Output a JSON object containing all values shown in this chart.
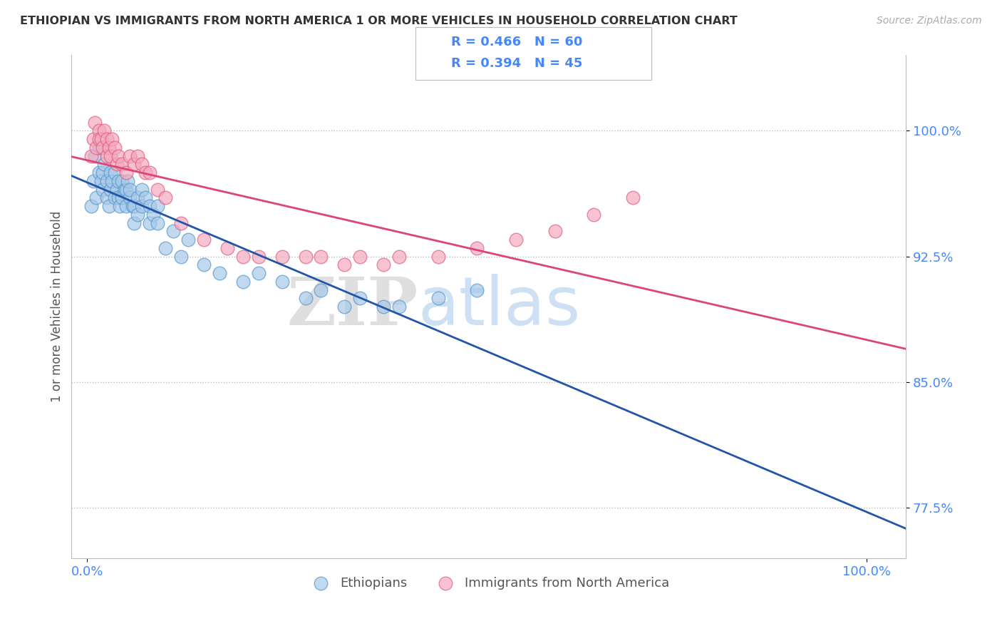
{
  "title": "ETHIOPIAN VS IMMIGRANTS FROM NORTH AMERICA 1 OR MORE VEHICLES IN HOUSEHOLD CORRELATION CHART",
  "source_text": "Source: ZipAtlas.com",
  "ylabel": "1 or more Vehicles in Household",
  "watermark_zip": "ZIP",
  "watermark_atlas": "atlas",
  "blue_color": "#a8c8e8",
  "pink_color": "#f4a8c0",
  "blue_edge_color": "#5599cc",
  "pink_edge_color": "#e06080",
  "blue_line_color": "#2255aa",
  "pink_line_color": "#dd4477",
  "yticks": [
    0.775,
    0.85,
    0.925,
    1.0
  ],
  "ytick_labels": [
    "77.5%",
    "85.0%",
    "92.5%",
    "100.0%"
  ],
  "xlim": [
    -0.02,
    1.05
  ],
  "ylim": [
    0.745,
    1.045
  ],
  "blue_R": 0.466,
  "blue_N": 60,
  "pink_R": 0.394,
  "pink_N": 45,
  "blue_scatter_x": [
    0.005,
    0.008,
    0.01,
    0.012,
    0.015,
    0.015,
    0.018,
    0.02,
    0.02,
    0.022,
    0.025,
    0.025,
    0.028,
    0.03,
    0.03,
    0.032,
    0.035,
    0.035,
    0.038,
    0.04,
    0.04,
    0.042,
    0.045,
    0.045,
    0.048,
    0.05,
    0.05,
    0.052,
    0.055,
    0.055,
    0.058,
    0.06,
    0.06,
    0.065,
    0.065,
    0.07,
    0.07,
    0.075,
    0.08,
    0.08,
    0.085,
    0.09,
    0.09,
    0.1,
    0.11,
    0.12,
    0.13,
    0.15,
    0.17,
    0.2,
    0.22,
    0.25,
    0.28,
    0.3,
    0.33,
    0.35,
    0.38,
    0.4,
    0.45,
    0.5
  ],
  "blue_scatter_y": [
    0.955,
    0.97,
    0.985,
    0.96,
    0.975,
    0.99,
    0.97,
    0.965,
    0.975,
    0.98,
    0.96,
    0.97,
    0.955,
    0.965,
    0.975,
    0.97,
    0.96,
    0.975,
    0.965,
    0.96,
    0.97,
    0.955,
    0.96,
    0.97,
    0.965,
    0.955,
    0.965,
    0.97,
    0.96,
    0.965,
    0.955,
    0.945,
    0.955,
    0.95,
    0.96,
    0.955,
    0.965,
    0.96,
    0.945,
    0.955,
    0.95,
    0.945,
    0.955,
    0.93,
    0.94,
    0.925,
    0.935,
    0.92,
    0.915,
    0.91,
    0.915,
    0.91,
    0.9,
    0.905,
    0.895,
    0.9,
    0.895,
    0.895,
    0.9,
    0.905
  ],
  "pink_scatter_x": [
    0.005,
    0.008,
    0.01,
    0.012,
    0.015,
    0.015,
    0.018,
    0.02,
    0.022,
    0.025,
    0.025,
    0.028,
    0.03,
    0.032,
    0.035,
    0.038,
    0.04,
    0.045,
    0.05,
    0.055,
    0.06,
    0.065,
    0.07,
    0.075,
    0.08,
    0.09,
    0.1,
    0.12,
    0.15,
    0.18,
    0.2,
    0.22,
    0.25,
    0.28,
    0.3,
    0.33,
    0.35,
    0.38,
    0.4,
    0.45,
    0.5,
    0.55,
    0.6,
    0.65,
    0.7
  ],
  "pink_scatter_y": [
    0.985,
    0.995,
    1.005,
    0.99,
    1.0,
    0.995,
    0.995,
    0.99,
    1.0,
    0.985,
    0.995,
    0.99,
    0.985,
    0.995,
    0.99,
    0.98,
    0.985,
    0.98,
    0.975,
    0.985,
    0.98,
    0.985,
    0.98,
    0.975,
    0.975,
    0.965,
    0.96,
    0.945,
    0.935,
    0.93,
    0.925,
    0.925,
    0.925,
    0.925,
    0.925,
    0.92,
    0.925,
    0.92,
    0.925,
    0.925,
    0.93,
    0.935,
    0.94,
    0.95,
    0.96
  ]
}
